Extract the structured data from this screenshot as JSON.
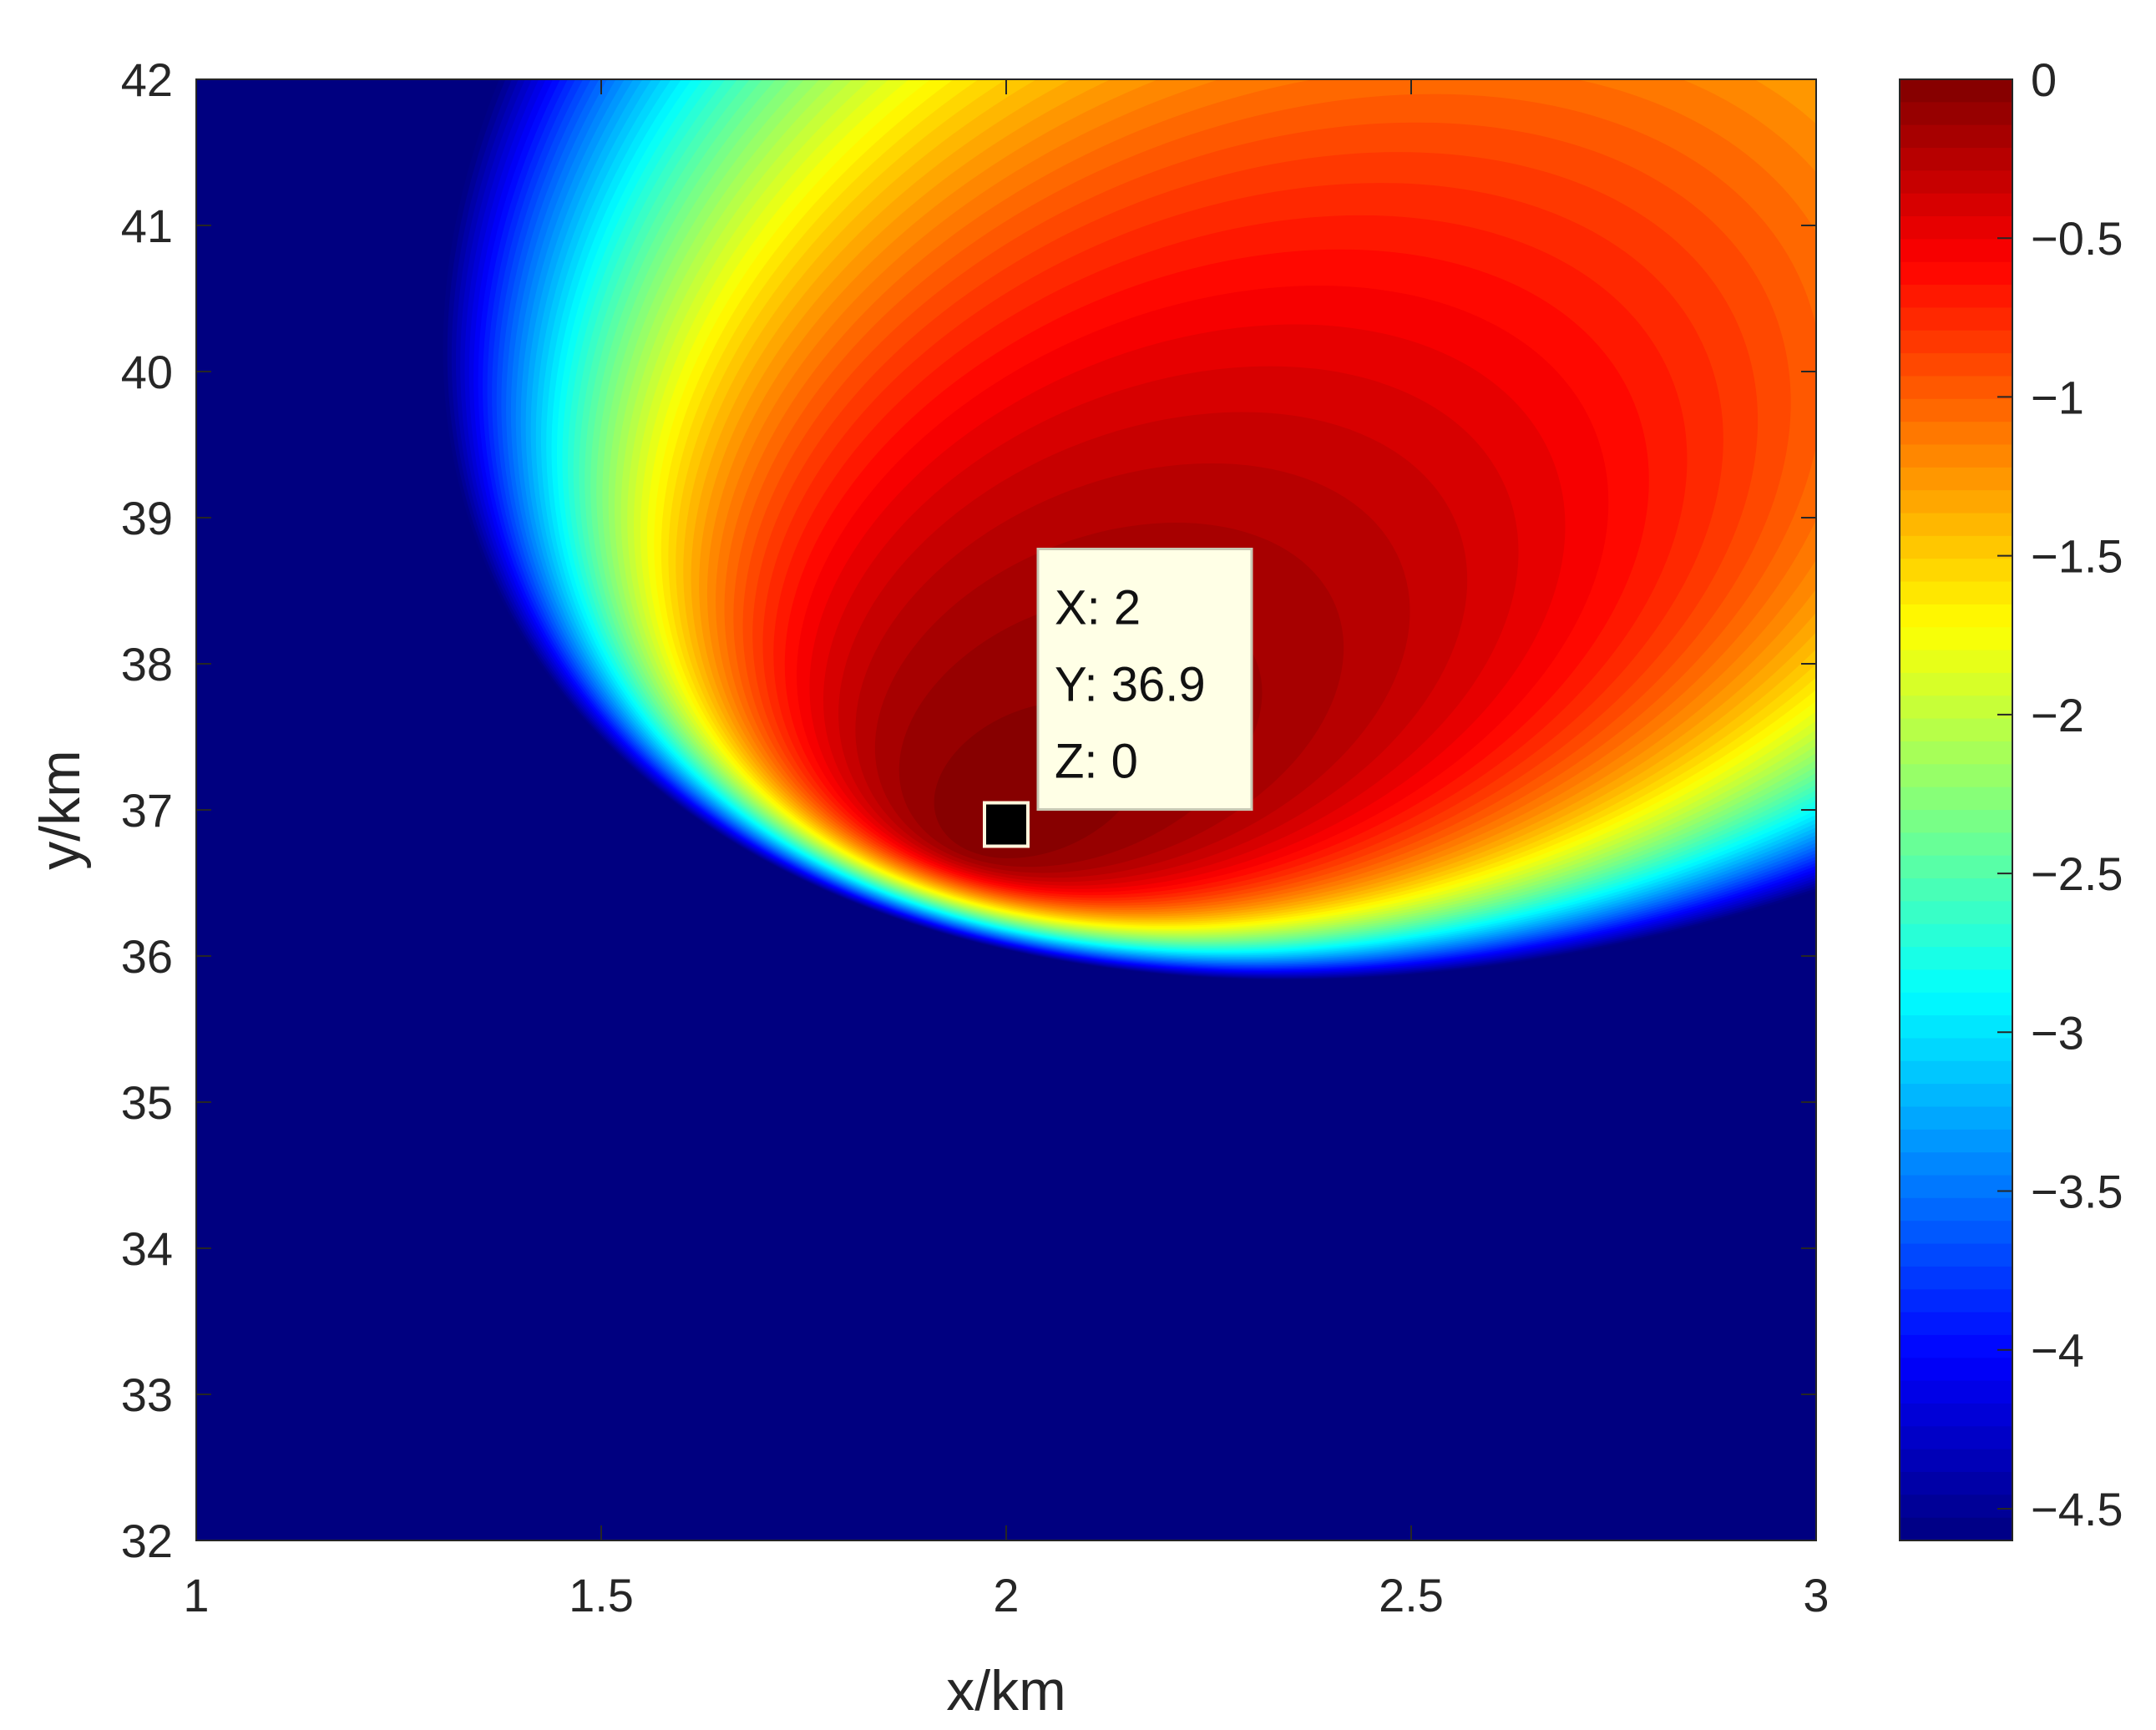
{
  "chart_data": {
    "type": "heatmap",
    "title": "",
    "xlabel": "x/km",
    "ylabel": "y/km",
    "xlim": [
      1,
      3
    ],
    "ylim": [
      32,
      42
    ],
    "x_ticks": [
      1,
      1.5,
      2,
      2.5,
      3
    ],
    "y_ticks": [
      32,
      33,
      34,
      35,
      36,
      37,
      38,
      39,
      40,
      41,
      42
    ],
    "x_tick_labels": [
      "1",
      "1.5",
      "2",
      "2.5",
      "3"
    ],
    "y_tick_labels": [
      "32",
      "33",
      "34",
      "35",
      "36",
      "37",
      "38",
      "39",
      "40",
      "41",
      "42"
    ],
    "colormap": "jet",
    "fill_style": "filled contour",
    "grid": false,
    "peak": {
      "x": 2.0,
      "y": 36.9,
      "z": 0
    },
    "z_range": [
      -4.6,
      0
    ],
    "colorbar": {
      "location": "right",
      "limits": [
        -4.6,
        0
      ],
      "ticks": [
        0,
        -0.5,
        -1,
        -1.5,
        -2,
        -2.5,
        -3,
        -3.5,
        -4,
        -4.5
      ],
      "tick_labels": [
        "0",
        "−0.5",
        "−1",
        "−1.5",
        "−2",
        "−2.5",
        "−3",
        "−3.5",
        "−4",
        "−4.5"
      ]
    },
    "datatip": {
      "x": 2,
      "y": 36.9,
      "lines": [
        "X: 2",
        "Y: 36.9",
        "Z: 0"
      ],
      "box_fill": "#ffffe6",
      "marker_color": "#000000"
    }
  }
}
